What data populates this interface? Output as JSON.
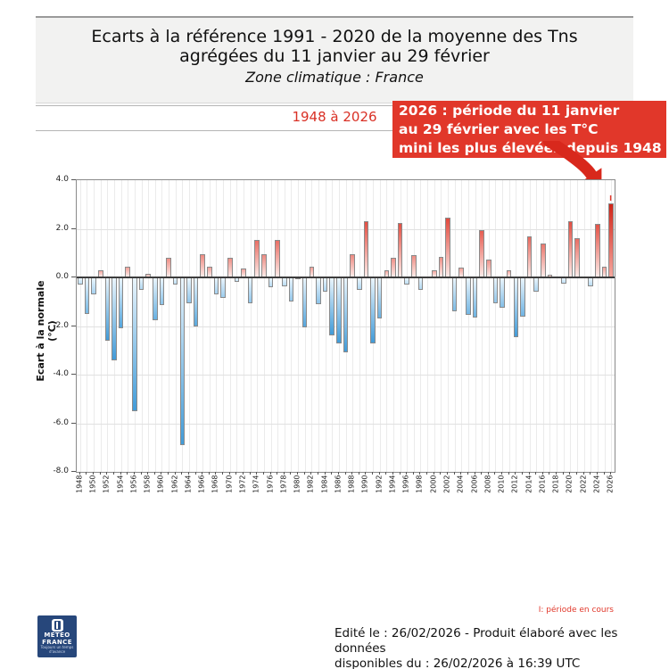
{
  "header": {
    "title_line1": "Ecarts à la référence 1991 - 2020 de la moyenne des Tns",
    "title_line2": "agrégées du 11 janvier au 29 février",
    "subtitle": "Zone climatique : France"
  },
  "period_label": "1948 à 2026",
  "annotation": {
    "lines": [
      "2026 : période du 11 janvier",
      "au 29 février avec les T°C",
      "mini les plus élevées depuis 1948"
    ],
    "background": "#e1372a"
  },
  "chart_data": {
    "type": "bar",
    "ylabel": "Ecart à la normale (°C)",
    "ylim": [
      -8.0,
      4.0
    ],
    "ytick_labels": [
      "4.0",
      "2.0",
      "0.0",
      "-2.0",
      "-4.0",
      "-6.0",
      "-8.0"
    ],
    "ytick_values": [
      4,
      2,
      0,
      -2,
      -4,
      -6,
      -8
    ],
    "grid": true,
    "years": [
      1948,
      1949,
      1950,
      1951,
      1952,
      1953,
      1954,
      1955,
      1956,
      1957,
      1958,
      1959,
      1960,
      1961,
      1962,
      1963,
      1964,
      1965,
      1966,
      1967,
      1968,
      1969,
      1970,
      1971,
      1972,
      1973,
      1974,
      1975,
      1976,
      1977,
      1978,
      1979,
      1980,
      1981,
      1982,
      1983,
      1984,
      1985,
      1986,
      1987,
      1988,
      1989,
      1990,
      1991,
      1992,
      1993,
      1994,
      1995,
      1996,
      1997,
      1998,
      1999,
      2000,
      2001,
      2002,
      2003,
      2004,
      2005,
      2006,
      2007,
      2008,
      2009,
      2010,
      2011,
      2012,
      2013,
      2014,
      2015,
      2016,
      2017,
      2018,
      2019,
      2020,
      2021,
      2022,
      2023,
      2024,
      2025,
      2026
    ],
    "values": [
      -0.3,
      -1.5,
      -0.7,
      0.3,
      -2.6,
      -3.4,
      -2.1,
      0.45,
      -5.5,
      -0.5,
      0.15,
      -1.75,
      -1.15,
      0.8,
      -0.3,
      -6.9,
      -1.05,
      -2.0,
      0.95,
      0.45,
      -0.7,
      -0.85,
      0.8,
      -0.2,
      0.35,
      -1.05,
      1.55,
      0.95,
      -0.4,
      1.55,
      -0.35,
      -1.0,
      -0.05,
      -2.05,
      0.45,
      -1.1,
      -0.6,
      -2.4,
      -2.7,
      -3.1,
      0.95,
      -0.5,
      2.3,
      -2.7,
      -1.7,
      0.3,
      0.8,
      2.25,
      -0.3,
      0.9,
      -0.5,
      0.05,
      0.3,
      0.85,
      2.45,
      -1.4,
      0.4,
      -1.55,
      -1.65,
      1.95,
      0.75,
      -1.05,
      -1.25,
      0.3,
      -2.45,
      -1.6,
      1.7,
      -0.6,
      1.4,
      0.1,
      0.05,
      -0.25,
      2.3,
      1.6,
      0.05,
      -0.35,
      2.2,
      0.45,
      3.05
    ],
    "xtick_label_years": [
      1948,
      1950,
      1952,
      1954,
      1956,
      1958,
      1960,
      1962,
      1964,
      1966,
      1968,
      1970,
      1972,
      1974,
      1976,
      1978,
      1980,
      1982,
      1984,
      1986,
      1988,
      1990,
      1992,
      1994,
      1996,
      1998,
      2000,
      2002,
      2004,
      2006,
      2008,
      2010,
      2012,
      2014,
      2016,
      2018,
      2020,
      2022,
      2024,
      2026
    ],
    "current_year": 2026,
    "current_marker": "I",
    "colors": {
      "positive_strong": "#e2493d",
      "positive_light": "#f5b5ae",
      "positive_base": "#fceae7",
      "negative_strong": "#419bd8",
      "negative_light": "#cfe7f8",
      "negative_base": "#eaf5fc",
      "current_top": "#d02418",
      "current_bottom": "#f5a79e",
      "grid": "#ebebeb",
      "zero_line": "#3c3c3c",
      "frame": "#8a8a8a"
    }
  },
  "legend_note": "I: période en cours",
  "footer": {
    "line1": "Edité le : 26/02/2026 - Produit élaboré avec les données",
    "line2": "disponibles du : 26/02/2026 à 16:39 UTC"
  },
  "logo": {
    "line1": "METEO",
    "line2": "FRANCE",
    "tagline1": "Toujours un temps",
    "tagline2": "d'avance",
    "background": "#27477b"
  }
}
